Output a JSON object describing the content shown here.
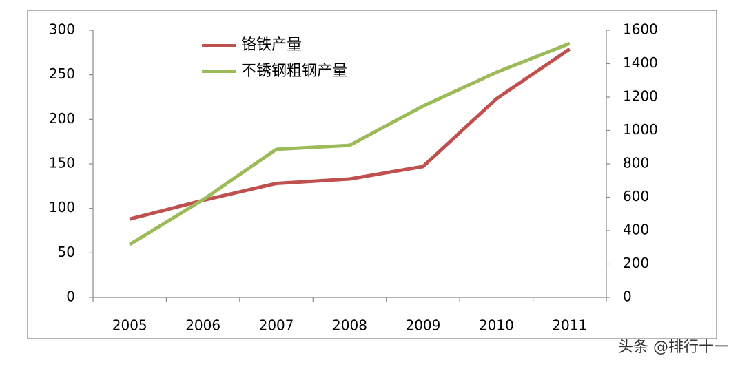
{
  "chart_data": {
    "type": "line",
    "categories": [
      "2005",
      "2006",
      "2007",
      "2008",
      "2009",
      "2010",
      "2011"
    ],
    "series": [
      {
        "name": "铬铁产量",
        "color": "#c0504d",
        "values": [
          88,
          109,
          128,
          133,
          147,
          223,
          279
        ]
      },
      {
        "name": "不锈钢粗钢产量",
        "color": "#9bbb59",
        "axis": "y2",
        "values": [
          317,
          585,
          887,
          911,
          1146,
          1348,
          1521
        ]
      }
    ],
    "ylim": [
      0,
      300
    ],
    "yticks": [
      0,
      50,
      100,
      150,
      200,
      250,
      300
    ],
    "y2lim": [
      0,
      1600
    ],
    "y2ticks": [
      0,
      200,
      400,
      600,
      800,
      1000,
      1200,
      1400,
      1600
    ],
    "legend": "top-left"
  },
  "watermark": "头条 @排行十一"
}
